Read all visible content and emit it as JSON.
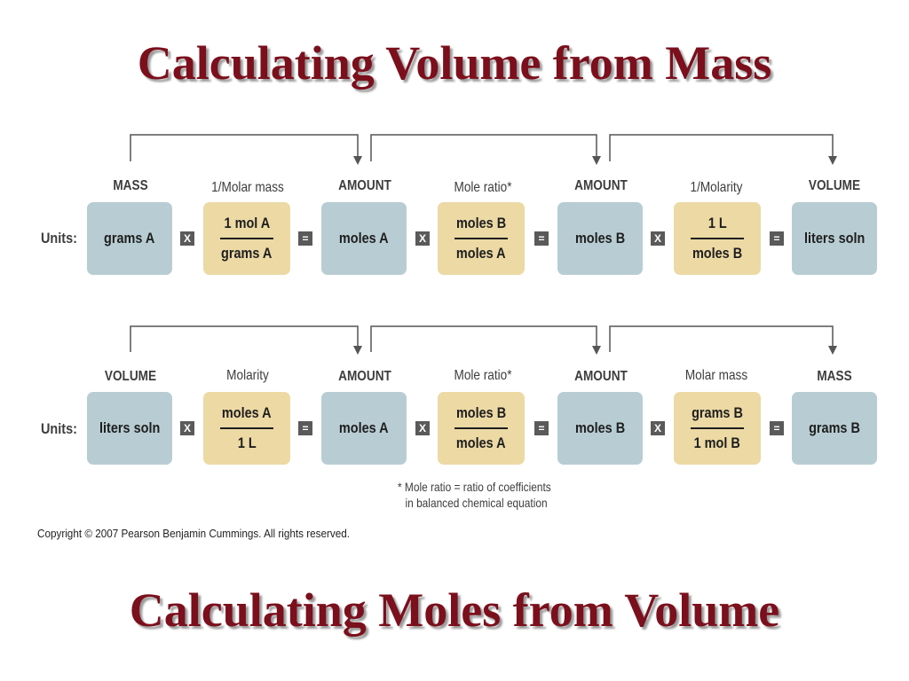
{
  "titles": {
    "top": "Calculating Volume from Mass",
    "bottom": "Calculating Moles from Volume"
  },
  "colors": {
    "title": "#7b0f1c",
    "blue_box": "#b8cdd3",
    "tan_box": "#ecd9a4",
    "operator": "#5a5a5a"
  },
  "operators": {
    "multiply": "X",
    "equals": "="
  },
  "row1": {
    "units_label": "Units:",
    "labels": [
      "MASS",
      "1/Molar mass",
      "AMOUNT",
      "Mole ratio*",
      "AMOUNT",
      "1/Molarity",
      "VOLUME"
    ],
    "boxes": [
      {
        "text": "grams A"
      },
      {
        "num": "1 mol A",
        "den": "grams A"
      },
      {
        "text": "moles A"
      },
      {
        "num": "moles B",
        "den": "moles A"
      },
      {
        "text": "moles B"
      },
      {
        "num": "1 L",
        "den": "moles B"
      },
      {
        "text": "liters soln"
      }
    ]
  },
  "row2": {
    "units_label": "Units:",
    "labels": [
      "VOLUME",
      "Molarity",
      "AMOUNT",
      "Mole ratio*",
      "AMOUNT",
      "Molar mass",
      "MASS"
    ],
    "boxes": [
      {
        "text": "liters soln"
      },
      {
        "num": "moles A",
        "den": "1 L"
      },
      {
        "text": "moles A"
      },
      {
        "num": "moles B",
        "den": "moles A"
      },
      {
        "text": "moles B"
      },
      {
        "num": "grams B",
        "den": "1 mol B"
      },
      {
        "text": "grams B"
      }
    ]
  },
  "footnote": {
    "line1": "* Mole ratio = ratio of coefficients",
    "line2": "in balanced chemical equation"
  },
  "copyright": "Copyright © 2007 Pearson Benjamin Cummings. All rights reserved."
}
